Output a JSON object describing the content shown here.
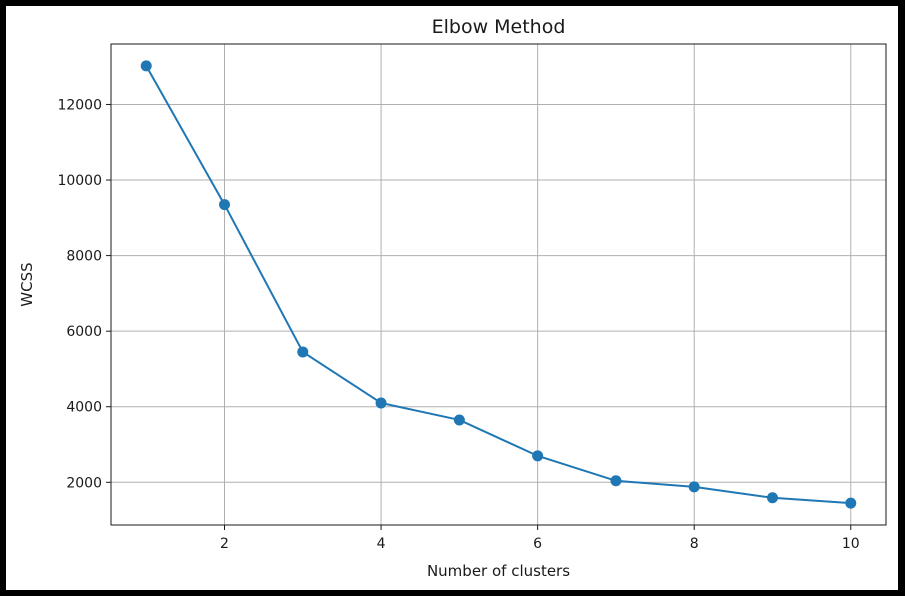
{
  "chart_data": {
    "type": "line",
    "title": "Elbow Method",
    "xlabel": "Number of clusters",
    "ylabel": "WCSS",
    "x": [
      1,
      2,
      3,
      4,
      5,
      6,
      7,
      8,
      9,
      10
    ],
    "series": [
      {
        "values": [
          13020,
          9350,
          5450,
          4100,
          3650,
          2700,
          2040,
          1880,
          1590,
          1450
        ],
        "color": "#1f77b4",
        "marker": "circle"
      }
    ],
    "xticks": [
      2,
      4,
      6,
      8,
      10
    ],
    "yticks": [
      2000,
      4000,
      6000,
      8000,
      10000,
      12000
    ],
    "xlim": [
      0.55,
      10.45
    ],
    "ylim": [
      870,
      13600
    ],
    "grid": true,
    "legend": false
  }
}
